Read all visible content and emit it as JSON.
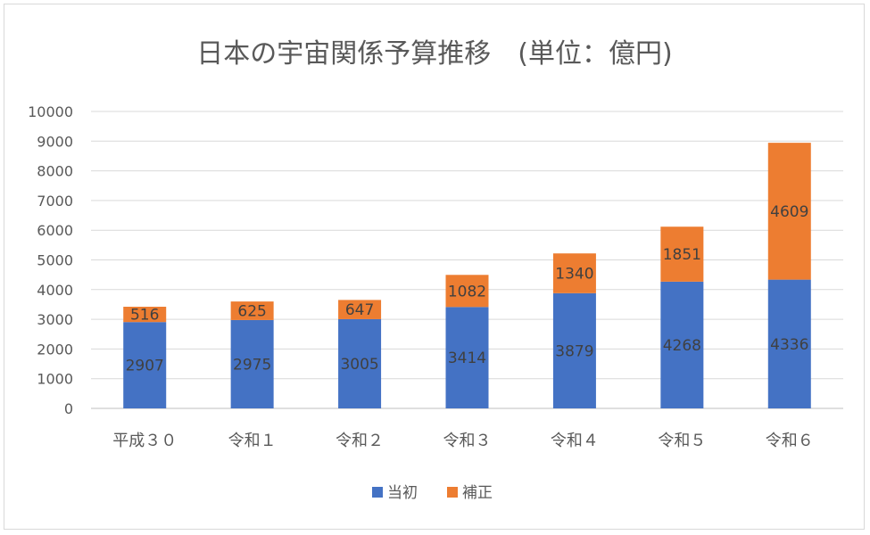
{
  "chart_data": {
    "type": "bar",
    "stacked": true,
    "title": "日本の宇宙関係予算推移　(単位：億円)",
    "xlabel": "",
    "ylabel": "",
    "ylim": [
      0,
      10000
    ],
    "yticks": [
      0,
      1000,
      2000,
      3000,
      4000,
      5000,
      6000,
      7000,
      8000,
      9000,
      10000
    ],
    "grid": true,
    "legend_position": "bottom",
    "categories": [
      "平成３０",
      "令和１",
      "令和２",
      "令和３",
      "令和４",
      "令和５",
      "令和６"
    ],
    "series": [
      {
        "name": "当初",
        "color": "#4472C4",
        "values": [
          2907,
          2975,
          3005,
          3414,
          3879,
          4268,
          4336
        ]
      },
      {
        "name": "補正",
        "color": "#ED7D31",
        "values": [
          516,
          625,
          647,
          1082,
          1340,
          1851,
          4609
        ]
      }
    ]
  }
}
